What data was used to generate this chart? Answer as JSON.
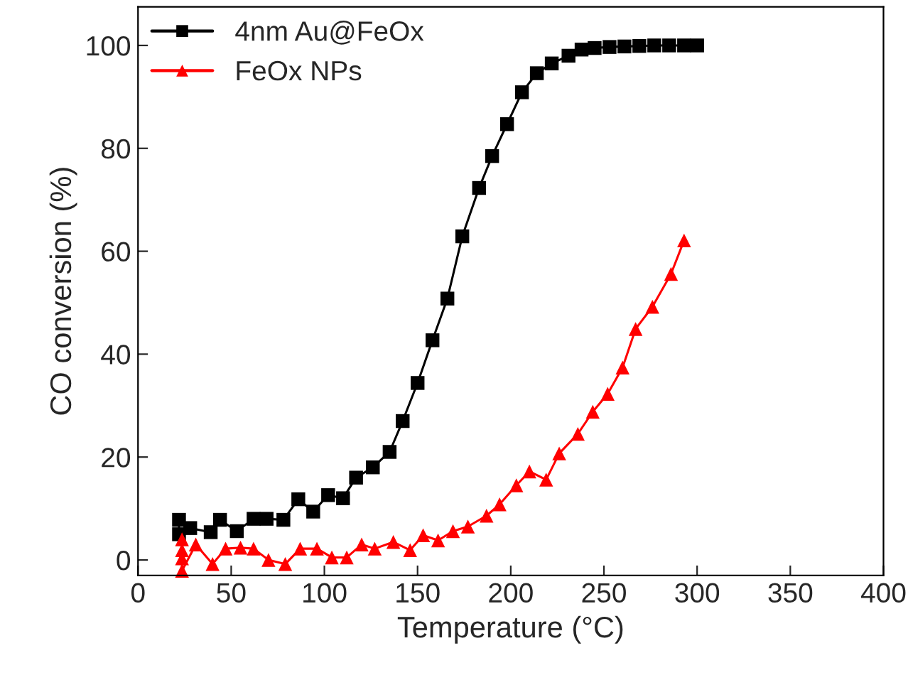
{
  "chart_data": {
    "type": "line",
    "xlabel": "Temperature (°C)",
    "ylabel": "CO conversion (%)",
    "xlim": [
      0,
      400
    ],
    "xticks": [
      0,
      50,
      100,
      150,
      200,
      250,
      300,
      350,
      400
    ],
    "ylim": [
      -3,
      107.5
    ],
    "yticks": [
      0,
      20,
      40,
      60,
      80,
      100
    ],
    "grid": false,
    "legend": "top left",
    "line_style": "solid",
    "series": [
      {
        "name": "4nm Au@FeOx",
        "color": "#000000",
        "marker": "square",
        "x": [
          22,
          22,
          28,
          39,
          44,
          53,
          62,
          69,
          78,
          86,
          94,
          102,
          110,
          117,
          126,
          135,
          142,
          150,
          158,
          166,
          174,
          183,
          190,
          198,
          206,
          214,
          222,
          231,
          238,
          245,
          253,
          261,
          269,
          277,
          285,
          293,
          300
        ],
        "values": [
          7.8,
          5,
          6.2,
          5.4,
          7.8,
          5.6,
          8,
          8,
          7.8,
          11.8,
          9.4,
          12.6,
          12,
          16,
          18,
          21,
          27,
          34.4,
          42.7,
          50.8,
          62.9,
          72.3,
          78.5,
          84.7,
          90.9,
          94.6,
          96.5,
          98,
          99.2,
          99.5,
          99.7,
          99.8,
          99.9,
          100,
          100,
          100,
          100
        ]
      },
      {
        "name": "FeOx NPs",
        "color": "#ff0000",
        "marker": "triangle",
        "x": [
          23.6,
          23.6,
          23.6,
          23.6,
          31,
          40,
          47,
          55,
          62,
          70,
          79,
          87,
          96,
          104,
          112,
          120,
          127,
          137,
          146,
          153,
          161,
          169,
          177,
          187,
          194,
          203,
          210,
          219,
          226,
          236,
          244,
          252,
          260,
          267,
          276,
          286,
          293
        ],
        "values": [
          4.0,
          1.9,
          0.3,
          -2.1,
          3.0,
          -0.8,
          2.2,
          2.4,
          2.2,
          0,
          -0.8,
          2.2,
          2.2,
          0.5,
          0.5,
          3.0,
          2.2,
          3.5,
          1.9,
          4.8,
          3.8,
          5.6,
          6.5,
          8.6,
          10.8,
          14.5,
          17.2,
          15.6,
          20.7,
          24.5,
          28.8,
          32.3,
          37.4,
          44.9,
          49.2,
          55.6,
          62.1
        ]
      }
    ]
  }
}
